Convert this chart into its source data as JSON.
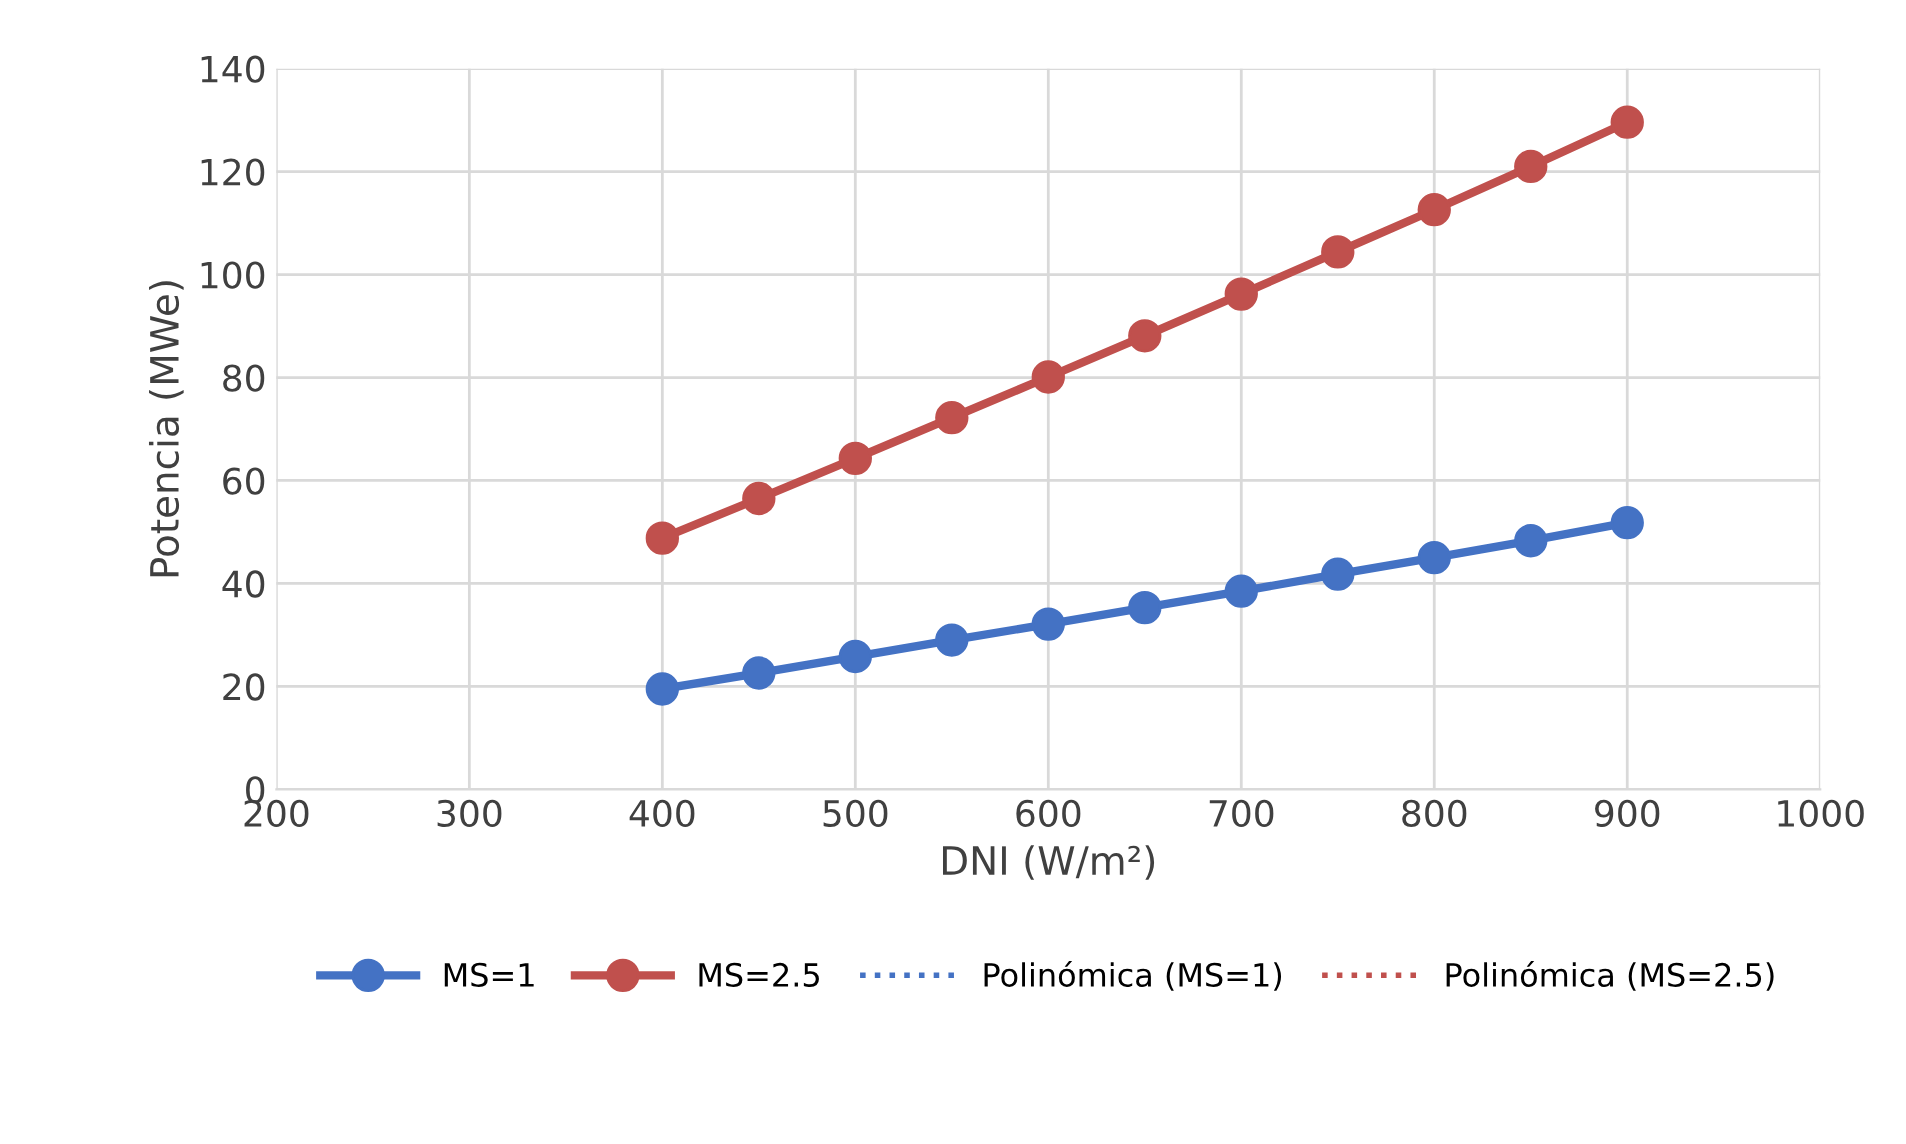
{
  "chart_data": {
    "type": "line",
    "xlabel": "DNI (W/m²)",
    "ylabel": "Potencia (MWe)",
    "xlim": [
      200,
      1000
    ],
    "xticks": [
      200,
      300,
      400,
      500,
      600,
      700,
      800,
      900,
      1000
    ],
    "ylim": [
      0,
      140
    ],
    "yticks": [
      0,
      20,
      40,
      60,
      80,
      100,
      120,
      140
    ],
    "grid": true,
    "legend": "bottom",
    "x": [
      400,
      450,
      500,
      550,
      600,
      650,
      700,
      750,
      800,
      850,
      900
    ],
    "series": [
      {
        "name": "MS=1",
        "color": "#4472c4",
        "marker": "circle",
        "line_style": "solid",
        "values": [
          19.5,
          22.6,
          25.8,
          29.0,
          32.1,
          35.3,
          38.5,
          41.8,
          45.0,
          48.3,
          51.8
        ]
      },
      {
        "name": "MS=2.5",
        "color": "#c0504d",
        "marker": "circle",
        "line_style": "solid",
        "values": [
          48.8,
          56.5,
          64.3,
          72.2,
          80.1,
          88.1,
          96.2,
          104.4,
          112.6,
          121.0,
          129.6
        ]
      },
      {
        "name": "Polinómica (MS=1)",
        "color": "#4472c4",
        "marker": "none",
        "line_style": "dotted",
        "values": [
          null,
          null,
          null,
          null,
          null,
          null,
          null,
          null,
          null,
          null,
          null
        ]
      },
      {
        "name": "Polinómica (MS=2.5)",
        "color": "#c0504d",
        "marker": "none",
        "line_style": "dotted",
        "values": [
          null,
          null,
          null,
          null,
          null,
          null,
          null,
          null,
          null,
          null,
          null
        ]
      }
    ]
  }
}
